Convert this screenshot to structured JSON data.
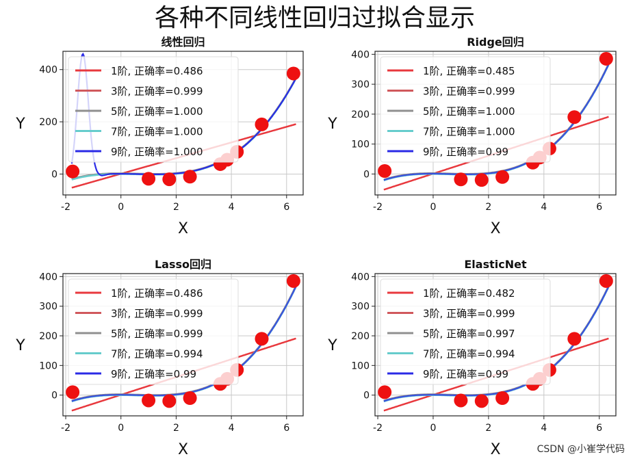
{
  "suptitle": "各种不同线性回归过拟合显示",
  "watermark": "CSDN @小崔学代码",
  "colors": {
    "red": "#e41a1c",
    "grid": "#cccccc",
    "c1": "#e8383d",
    "c3": "#d0585c",
    "c5": "#8f8f8f",
    "c7": "#66cccc",
    "c9": "#2a2ae6"
  },
  "chart_data": [
    {
      "type": "line",
      "title": "线性回归",
      "xlabel": "X",
      "ylabel": "Y",
      "xlim": [
        -2.1,
        6.6
      ],
      "ylim": [
        -80,
        470
      ],
      "xticks": [
        -2,
        0,
        2,
        4,
        6
      ],
      "yticks": [
        0,
        200,
        400
      ],
      "points": {
        "x": [
          -1.75,
          1.0,
          1.75,
          2.5,
          3.6,
          3.85,
          4.2,
          5.1,
          6.25
        ],
        "y": [
          10,
          -18,
          -20,
          -10,
          38,
          55,
          85,
          190,
          385
        ]
      },
      "series": [
        {
          "name": "1阶, 正确率=0.486",
          "color": "#e8383d"
        },
        {
          "name": "3阶, 正确率=0.999",
          "color": "#d0585c"
        },
        {
          "name": "5阶, 正确率=1.000",
          "color": "#8f8f8f"
        },
        {
          "name": "7阶, 正确率=1.000",
          "color": "#66cccc"
        },
        {
          "name": "9阶, 正确率=1.000",
          "color": "#2a2ae6"
        }
      ]
    },
    {
      "type": "line",
      "title": "Ridge回归",
      "xlabel": "X",
      "ylabel": "Y",
      "xlim": [
        -2.1,
        6.6
      ],
      "ylim": [
        -70,
        410
      ],
      "xticks": [
        -2,
        0,
        2,
        4,
        6
      ],
      "yticks": [
        0,
        100,
        200,
        300,
        400
      ],
      "points": {
        "x": [
          -1.75,
          1.0,
          1.75,
          2.5,
          3.6,
          3.85,
          4.2,
          5.1,
          6.25
        ],
        "y": [
          10,
          -18,
          -20,
          -10,
          38,
          55,
          85,
          190,
          385
        ]
      },
      "series": [
        {
          "name": "1阶, 正确率=0.485",
          "color": "#e8383d"
        },
        {
          "name": "3阶, 正确率=0.999",
          "color": "#d0585c"
        },
        {
          "name": "5阶, 正确率=1.000",
          "color": "#8f8f8f"
        },
        {
          "name": "7阶, 正确率=1.000",
          "color": "#66cccc"
        },
        {
          "name": "9阶, 正确率=0.99",
          "color": "#2a2ae6"
        }
      ]
    },
    {
      "type": "line",
      "title": "Lasso回归",
      "xlabel": "X",
      "ylabel": "Y",
      "xlim": [
        -2.1,
        6.6
      ],
      "ylim": [
        -70,
        410
      ],
      "xticks": [
        -2,
        0,
        2,
        4,
        6
      ],
      "yticks": [
        0,
        100,
        200,
        300,
        400
      ],
      "points": {
        "x": [
          -1.75,
          1.0,
          1.75,
          2.5,
          3.6,
          3.85,
          4.2,
          5.1,
          6.25
        ],
        "y": [
          10,
          -18,
          -20,
          -10,
          38,
          55,
          85,
          190,
          385
        ]
      },
      "series": [
        {
          "name": "1阶, 正确率=0.486",
          "color": "#e8383d"
        },
        {
          "name": "3阶, 正确率=0.999",
          "color": "#d0585c"
        },
        {
          "name": "5阶, 正确率=0.999",
          "color": "#8f8f8f"
        },
        {
          "name": "7阶, 正确率=0.994",
          "color": "#66cccc"
        },
        {
          "name": "9阶, 正确率=0.99",
          "color": "#2a2ae6"
        }
      ]
    },
    {
      "type": "line",
      "title": "ElasticNet",
      "xlabel": "X",
      "ylabel": "Y",
      "xlim": [
        -2.1,
        6.6
      ],
      "ylim": [
        -70,
        410
      ],
      "xticks": [
        -2,
        0,
        2,
        4,
        6
      ],
      "yticks": [
        0,
        100,
        200,
        300,
        400
      ],
      "points": {
        "x": [
          -1.75,
          1.0,
          1.75,
          2.5,
          3.6,
          3.85,
          4.2,
          5.1,
          6.25
        ],
        "y": [
          10,
          -18,
          -20,
          -10,
          38,
          55,
          85,
          190,
          385
        ]
      },
      "series": [
        {
          "name": "1阶, 正确率=0.482",
          "color": "#e8383d"
        },
        {
          "name": "3阶, 正确率=0.999",
          "color": "#d0585c"
        },
        {
          "name": "5阶, 正确率=0.997",
          "color": "#8f8f8f"
        },
        {
          "name": "7阶, 正确率=0.994",
          "color": "#66cccc"
        },
        {
          "name": "9阶, 正确率=0.99",
          "color": "#2a2ae6"
        }
      ]
    }
  ]
}
